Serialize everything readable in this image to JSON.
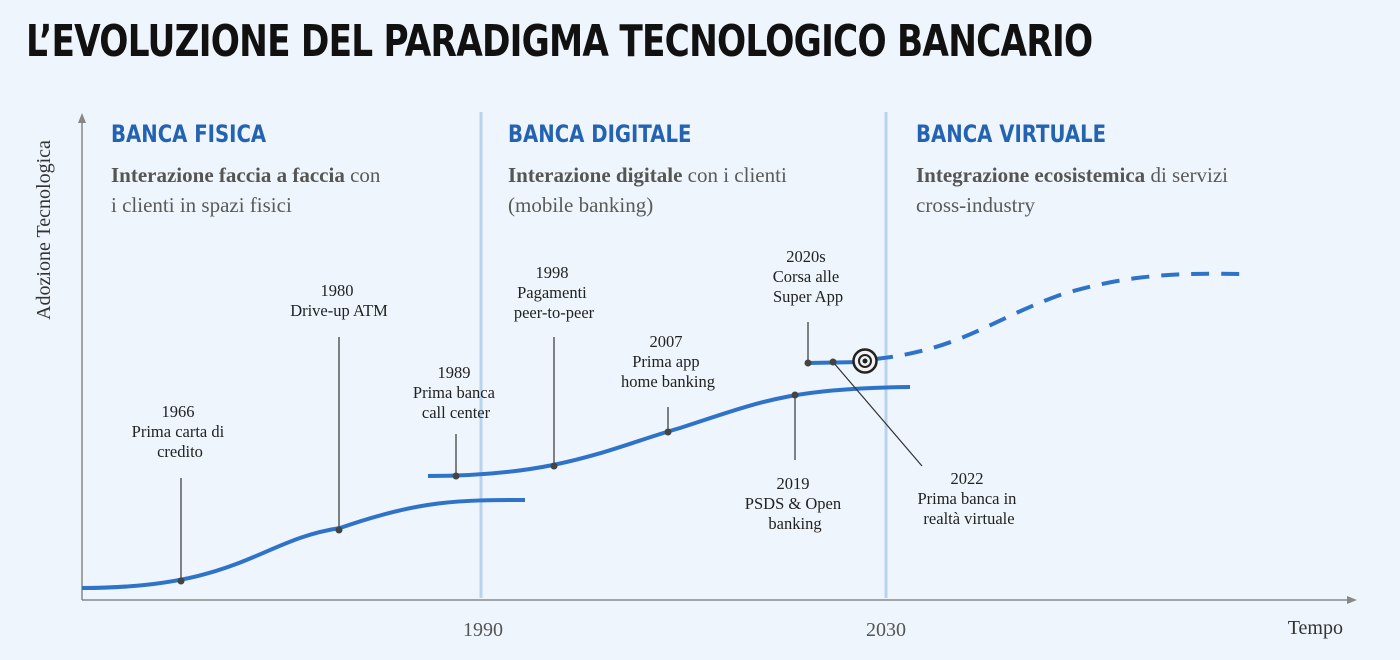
{
  "title": "L’EVOLUZIONE DEL PARADIGMA TECNOLOGICO BANCARIO",
  "axes": {
    "y_label": "Adozione Tecnologica",
    "x_label": "Tempo"
  },
  "x_ticks": [
    "1990",
    "2030"
  ],
  "sections": [
    {
      "heading": "BANCA FISICA",
      "desc_bold": "Interazione faccia a faccia",
      "desc_line1_rest": " con",
      "desc_line2": "i clienti in spazi fisici"
    },
    {
      "heading": "BANCA DIGITALE",
      "desc_bold": "Interazione digitale",
      "desc_line1_rest": " con i clienti",
      "desc_line2": "(mobile banking)"
    },
    {
      "heading": "BANCA VIRTUALE",
      "desc_bold": "Integrazione ecosistemica",
      "desc_line1_rest": " di servizi",
      "desc_line2": "cross-industry"
    }
  ],
  "milestones": [
    {
      "lines": [
        "1966",
        "Prima carta di",
        "credito"
      ]
    },
    {
      "lines": [
        "1980",
        "Drive-up ATM"
      ]
    },
    {
      "lines": [
        "1989",
        "Prima banca",
        "call center"
      ]
    },
    {
      "lines": [
        "1998",
        "Pagamenti",
        "peer-to-peer"
      ]
    },
    {
      "lines": [
        "2007",
        "Prima app",
        "home banking"
      ]
    },
    {
      "lines": [
        "2020s",
        "Corsa alle",
        "Super App"
      ]
    },
    {
      "lines": [
        "2019",
        "PSDS & Open",
        "banking"
      ]
    },
    {
      "lines": [
        "2022",
        "Prima banca in",
        "realtà virtuale"
      ]
    }
  ],
  "colors": {
    "curve": "#2f73c9",
    "divider": "#b9d3ee",
    "axis": "#888888",
    "heading": "#2463b2",
    "leader": "#333333"
  }
}
